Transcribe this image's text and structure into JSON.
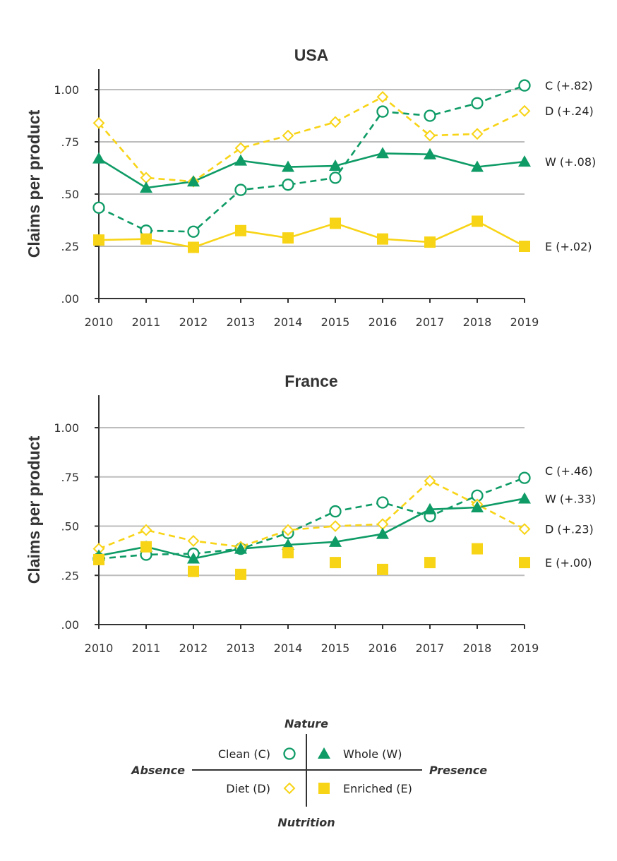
{
  "colors": {
    "green": "#0e9b66",
    "yellow": "#f8d417",
    "grid": "#bdbdbd",
    "axis": "#333333"
  },
  "chart_data": [
    {
      "type": "line",
      "title": "USA",
      "ylabel": "Claims per product",
      "x": [
        "2010",
        "2011",
        "2012",
        "2013",
        "2014",
        "2015",
        "2016",
        "2017",
        "2018",
        "2019"
      ],
      "ylim": [
        0,
        1.1
      ],
      "yticks": [
        0,
        0.25,
        0.5,
        0.75,
        1.0
      ],
      "ytick_labels": [
        ".00",
        ".25",
        ".50",
        ".75",
        "1.00"
      ],
      "gridlines": [
        0.25,
        0.5,
        0.75,
        1.0
      ],
      "series": [
        {
          "key": "C",
          "end_label": "C (+.82)",
          "color": "green",
          "marker": "circle-open",
          "dash": true,
          "line": true,
          "values": [
            0.435,
            0.325,
            0.32,
            0.52,
            0.545,
            0.578,
            0.895,
            0.875,
            0.935,
            1.02
          ]
        },
        {
          "key": "D",
          "end_label": "D (+.24)",
          "color": "yellow",
          "marker": "diamond-open",
          "dash": true,
          "line": true,
          "values": [
            0.84,
            0.578,
            0.56,
            0.72,
            0.78,
            0.845,
            0.965,
            0.78,
            0.788,
            0.898
          ]
        },
        {
          "key": "W",
          "end_label": "W (+.08)",
          "color": "green",
          "marker": "triangle",
          "dash": false,
          "line": true,
          "values": [
            0.67,
            0.53,
            0.56,
            0.66,
            0.63,
            0.635,
            0.695,
            0.69,
            0.63,
            0.655
          ]
        },
        {
          "key": "E",
          "end_label": "E (+.02)",
          "color": "yellow",
          "marker": "square",
          "dash": false,
          "line": true,
          "values": [
            0.28,
            0.285,
            0.245,
            0.325,
            0.29,
            0.36,
            0.285,
            0.27,
            0.37,
            0.25
          ]
        }
      ]
    },
    {
      "type": "line",
      "title": "France",
      "ylabel": "Claims per product",
      "x": [
        "2010",
        "2011",
        "2012",
        "2013",
        "2014",
        "2015",
        "2016",
        "2017",
        "2018",
        "2019"
      ],
      "ylim": [
        0,
        1.17
      ],
      "yticks": [
        0,
        0.25,
        0.5,
        0.75,
        1.0
      ],
      "ytick_labels": [
        ".00",
        ".25",
        ".50",
        ".75",
        "1.00"
      ],
      "gridlines": [
        0.25,
        0.5,
        0.75,
        1.0
      ],
      "series": [
        {
          "key": "C",
          "end_label": "C (+.46)",
          "color": "green",
          "marker": "circle-open",
          "dash": true,
          "line": true,
          "values": [
            0.335,
            0.355,
            0.36,
            0.385,
            0.465,
            0.575,
            0.62,
            0.55,
            0.655,
            0.745
          ]
        },
        {
          "key": "D",
          "end_label": "D (+.23)",
          "color": "yellow",
          "marker": "diamond-open",
          "dash": true,
          "line": true,
          "values": [
            0.385,
            0.48,
            0.425,
            0.395,
            0.48,
            0.5,
            0.51,
            0.73,
            0.61,
            0.485
          ]
        },
        {
          "key": "W",
          "end_label": "W (+.33)",
          "color": "green",
          "marker": "triangle",
          "dash": false,
          "line": true,
          "values": [
            0.35,
            0.395,
            0.335,
            0.385,
            0.405,
            0.42,
            0.46,
            0.585,
            0.595,
            0.64
          ]
        },
        {
          "key": "E",
          "end_label": "E (+.00)",
          "color": "yellow",
          "marker": "square",
          "dash": false,
          "line": false,
          "values": [
            0.33,
            0.395,
            0.27,
            0.255,
            0.365,
            0.315,
            0.28,
            0.315,
            0.385,
            0.315
          ]
        }
      ]
    }
  ],
  "legend": {
    "top_label": "Nature",
    "bottom_label": "Nutrition",
    "left_label": "Absence",
    "right_label": "Presence",
    "items": [
      {
        "key": "C",
        "label": "Clean (C)",
        "marker": "circle-open",
        "color": "green",
        "side": "left",
        "row": 0
      },
      {
        "key": "W",
        "label": "Whole (W)",
        "marker": "triangle",
        "color": "green",
        "side": "right",
        "row": 0
      },
      {
        "key": "D",
        "label": "Diet (D)",
        "marker": "diamond-open",
        "color": "yellow",
        "side": "left",
        "row": 1
      },
      {
        "key": "E",
        "label": "Enriched (E)",
        "marker": "square",
        "color": "yellow",
        "side": "right",
        "row": 1
      }
    ]
  }
}
